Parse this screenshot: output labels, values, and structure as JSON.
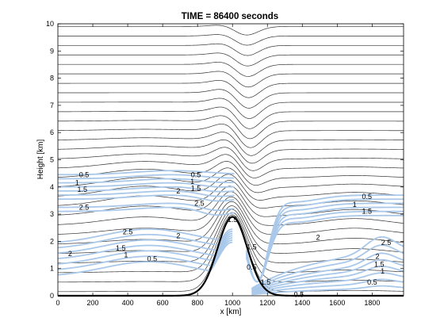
{
  "chart_data": {
    "type": "contour",
    "title": "TIME = 86400 seconds",
    "xlabel": "x [km]",
    "ylabel": "Height [km]",
    "xlim": [
      0,
      1980
    ],
    "ylim": [
      0,
      10
    ],
    "xticks": [
      0,
      200,
      400,
      600,
      800,
      1000,
      1200,
      1400,
      1600,
      1800
    ],
    "yticks": [
      0,
      1,
      2,
      3,
      4,
      5,
      6,
      7,
      8,
      9,
      10
    ],
    "grid": false,
    "terrain": {
      "center_x": 1000,
      "peak_height": 2.9,
      "half_width": 120
    },
    "isentropes": {
      "color": "#333333",
      "levels": 29,
      "bottom": 0.15,
      "top": 9.9
    },
    "blue_contours": {
      "color": "#a9c8ea",
      "labels": [
        {
          "text": "0.5",
          "x": 150,
          "y": 4.45
        },
        {
          "text": "1",
          "x": 110,
          "y": 4.15
        },
        {
          "text": "1.5",
          "x": 140,
          "y": 3.9
        },
        {
          "text": "2.5",
          "x": 150,
          "y": 3.25
        },
        {
          "text": "0.5",
          "x": 790,
          "y": 4.45
        },
        {
          "text": "1",
          "x": 770,
          "y": 4.2
        },
        {
          "text": "1.5",
          "x": 790,
          "y": 3.95
        },
        {
          "text": "2",
          "x": 690,
          "y": 3.85
        },
        {
          "text": "2.5",
          "x": 810,
          "y": 3.4
        },
        {
          "text": "2.5",
          "x": 400,
          "y": 2.35
        },
        {
          "text": "2",
          "x": 690,
          "y": 2.2
        },
        {
          "text": "2",
          "x": 70,
          "y": 1.55
        },
        {
          "text": "1.5",
          "x": 360,
          "y": 1.75
        },
        {
          "text": "1",
          "x": 390,
          "y": 1.5
        },
        {
          "text": "0.5",
          "x": 540,
          "y": 1.35
        },
        {
          "text": "1.5",
          "x": 1000,
          "y": 2.8
        },
        {
          "text": "1.5",
          "x": 1110,
          "y": 1.8
        },
        {
          "text": "0.5",
          "x": 1110,
          "y": 1.05
        },
        {
          "text": "1.5",
          "x": 1190,
          "y": 0.5
        },
        {
          "text": "0.5",
          "x": 1380,
          "y": 0.05
        },
        {
          "text": "0.5",
          "x": 1770,
          "y": 3.65
        },
        {
          "text": "1",
          "x": 1700,
          "y": 3.35
        },
        {
          "text": "1.5",
          "x": 1770,
          "y": 3.1
        },
        {
          "text": "2",
          "x": 1490,
          "y": 2.15
        },
        {
          "text": "2.5",
          "x": 1880,
          "y": 1.95
        },
        {
          "text": "2",
          "x": 1830,
          "y": 1.45
        },
        {
          "text": "1.5",
          "x": 1840,
          "y": 1.15
        },
        {
          "text": "1",
          "x": 1860,
          "y": 0.9
        },
        {
          "text": "0.5",
          "x": 1800,
          "y": 0.5
        }
      ]
    }
  }
}
